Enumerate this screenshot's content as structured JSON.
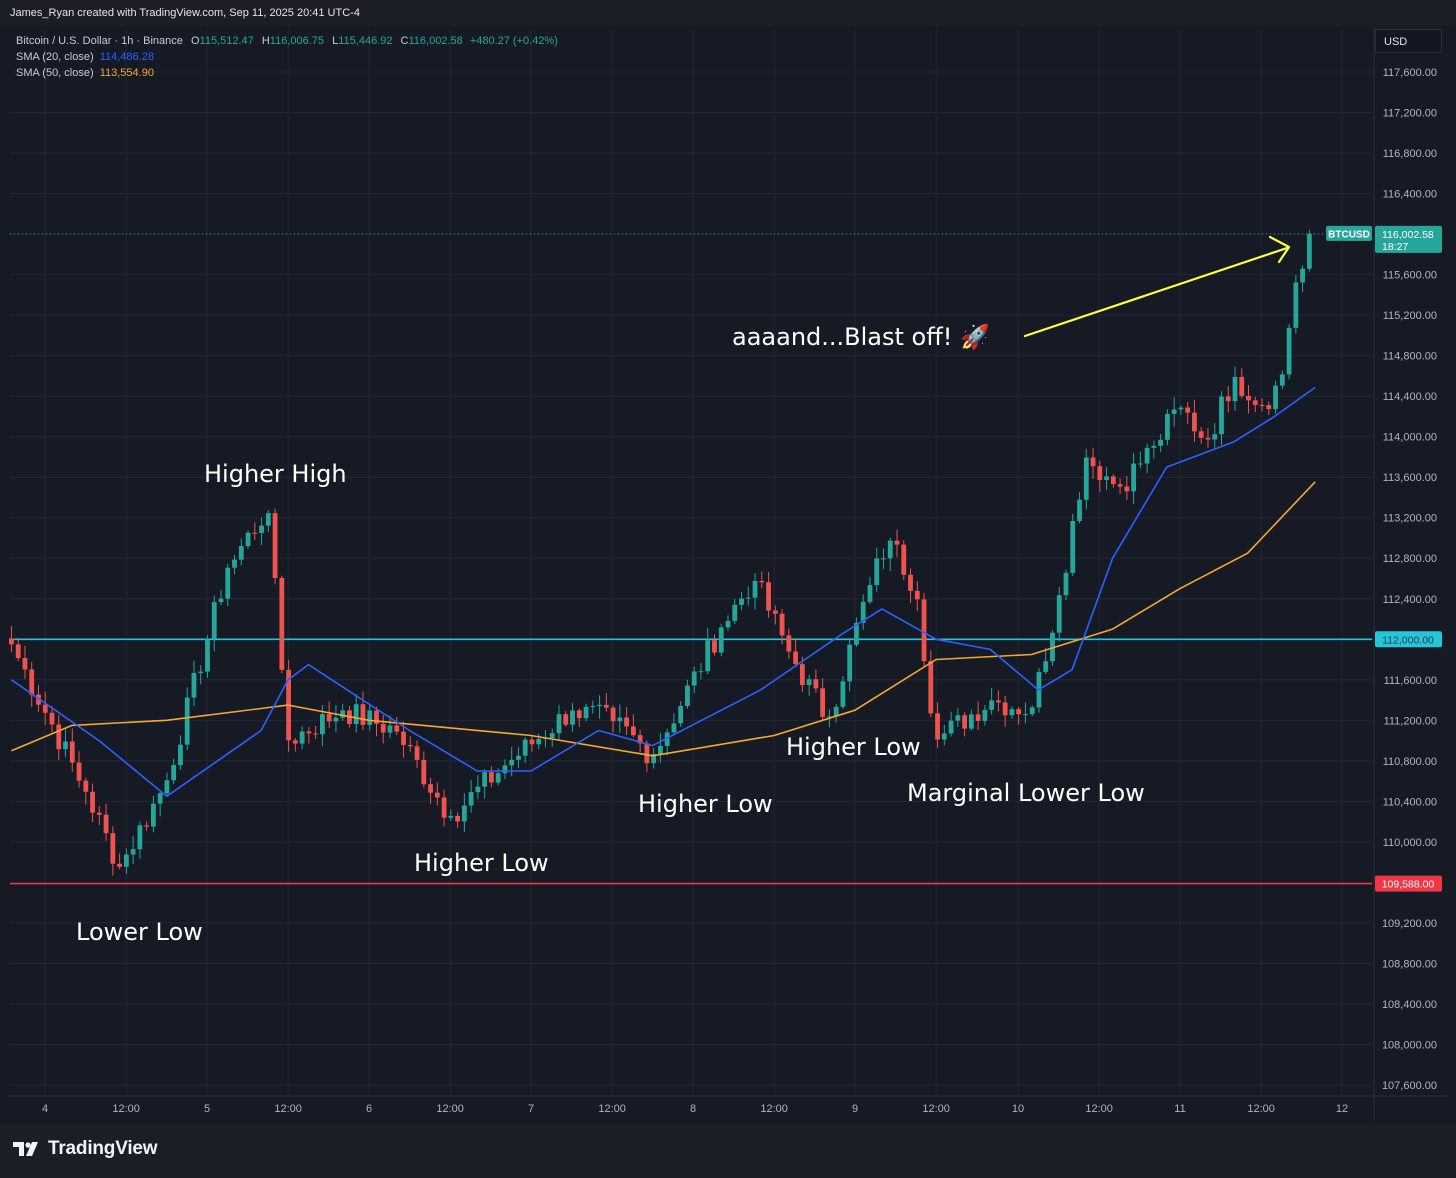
{
  "header": {
    "credit": "James_Ryan created with TradingView.com, Sep 11, 2025 20:41 UTC-4"
  },
  "legend": {
    "symbol": "Bitcoin / U.S. Dollar · 1h · Binance",
    "open_label": "O",
    "open": "115,512.47",
    "high_label": "H",
    "high": "116,006.75",
    "low_label": "L",
    "low": "115,446.92",
    "close_label": "C",
    "close": "116,002.58",
    "change": "+480.27 (+0.42%)",
    "sma20_label": "SMA (20, close)",
    "sma20_value": "114,486.28",
    "sma50_label": "SMA (50, close)",
    "sma50_value": "113,554.90"
  },
  "currency_button": "USD",
  "price_tag": {
    "symbol": "BTCUSD",
    "price": "116,002.58",
    "countdown": "18:27"
  },
  "level_tags": {
    "support_high": "112,000.00",
    "support_low": "109,588.00"
  },
  "annotations": {
    "higher_high": "Higher High",
    "lower_low": "Lower Low",
    "higher_low_1": "Higher Low",
    "higher_low_2": "Higher Low",
    "higher_low_3": "Higher Low",
    "marginal_lower_low": "Marginal Lower Low",
    "blast_off": "aaaand...Blast off! 🚀"
  },
  "brand": {
    "name": "TradingView"
  },
  "colors": {
    "background": "#161a25",
    "grid": "#232734",
    "up": "#26a69a",
    "down": "#ef5350",
    "sma20": "#2962ff",
    "sma50": "#f7a631",
    "level_high": "#26c6da",
    "level_low": "#f23645",
    "arrow": "#ffff3b"
  },
  "chart_data": {
    "type": "candlestick",
    "timeframe": "1h",
    "x_tick_labels": [
      "4",
      "12:00",
      "5",
      "12:00",
      "6",
      "12:00",
      "7",
      "12:00",
      "8",
      "12:00",
      "9",
      "12:00",
      "10",
      "12:00",
      "11",
      "12:00",
      "12"
    ],
    "y_tick_labels": [
      "117,600.00",
      "117,200.00",
      "116,800.00",
      "116,400.00",
      "116,000.00",
      "115,600.00",
      "115,200.00",
      "114,800.00",
      "114,400.00",
      "114,000.00",
      "113,600.00",
      "113,200.00",
      "112,800.00",
      "112,400.00",
      "112,000.00",
      "111,600.00",
      "111,200.00",
      "110,800.00",
      "110,400.00",
      "110,000.00",
      "109,600.00",
      "109,200.00",
      "108,800.00",
      "108,400.00",
      "108,000.00",
      "107,600.00"
    ],
    "y_range": [
      107500,
      118000
    ],
    "horizontal_levels": [
      112000,
      109588
    ],
    "last_price": 116002.58,
    "key_closes": [
      {
        "time": "Sep 3 19:00",
        "close": 111950
      },
      {
        "time": "Sep 4 06:00",
        "close": 110500
      },
      {
        "time": "Sep 4 11:00",
        "close": 109750
      },
      {
        "time": "Sep 4 18:00",
        "close": 110600
      },
      {
        "time": "Sep 5 03:00",
        "close": 112700
      },
      {
        "time": "Sep 5 09:00",
        "close": 113300
      },
      {
        "time": "Sep 5 12:00",
        "close": 111000
      },
      {
        "time": "Sep 5 20:00",
        "close": 111300
      },
      {
        "time": "Sep 6 04:00",
        "close": 111100
      },
      {
        "time": "Sep 6 12:00",
        "close": 110250
      },
      {
        "time": "Sep 6 20:00",
        "close": 110750
      },
      {
        "time": "Sep 7 06:00",
        "close": 111300
      },
      {
        "time": "Sep 7 12:00",
        "close": 111200
      },
      {
        "time": "Sep 7 18:00",
        "close": 110850
      },
      {
        "time": "Sep 8 04:00",
        "close": 112100
      },
      {
        "time": "Sep 8 09:00",
        "close": 112600
      },
      {
        "time": "Sep 8 14:00",
        "close": 111900
      },
      {
        "time": "Sep 8 20:00",
        "close": 111200
      },
      {
        "time": "Sep 9 02:00",
        "close": 112500
      },
      {
        "time": "Sep 9 05:00",
        "close": 113000
      },
      {
        "time": "Sep 9 09:00",
        "close": 112500
      },
      {
        "time": "Sep 9 12:00",
        "close": 111000
      },
      {
        "time": "Sep 9 20:00",
        "close": 111400
      },
      {
        "time": "Sep 10 02:00",
        "close": 111300
      },
      {
        "time": "Sep 10 06:00",
        "close": 112400
      },
      {
        "time": "Sep 10 10:00",
        "close": 113800
      },
      {
        "time": "Sep 10 15:00",
        "close": 113500
      },
      {
        "time": "Sep 10 20:00",
        "close": 113900
      },
      {
        "time": "Sep 11 00:00",
        "close": 114300
      },
      {
        "time": "Sep 11 04:00",
        "close": 113950
      },
      {
        "time": "Sep 11 08:00",
        "close": 114600
      },
      {
        "time": "Sep 11 12:00",
        "close": 114300
      },
      {
        "time": "Sep 11 15:00",
        "close": 114550
      },
      {
        "time": "Sep 11 17:00",
        "close": 115500
      },
      {
        "time": "Sep 11 20:00",
        "close": 116002.58
      }
    ],
    "sma20": [
      {
        "time": "Sep 3 19:00",
        "value": 111600
      },
      {
        "time": "Sep 4 08:00",
        "value": 111000
      },
      {
        "time": "Sep 4 18:00",
        "value": 110450
      },
      {
        "time": "Sep 5 08:00",
        "value": 111100
      },
      {
        "time": "Sep 5 12:00",
        "value": 111600
      },
      {
        "time": "Sep 5 15:00",
        "value": 111750
      },
      {
        "time": "Sep 6 06:00",
        "value": 111100
      },
      {
        "time": "Sep 6 16:00",
        "value": 110700
      },
      {
        "time": "Sep 7 00:00",
        "value": 110700
      },
      {
        "time": "Sep 7 10:00",
        "value": 111100
      },
      {
        "time": "Sep 7 18:00",
        "value": 110950
      },
      {
        "time": "Sep 8 10:00",
        "value": 111500
      },
      {
        "time": "Sep 8 22:00",
        "value": 112050
      },
      {
        "time": "Sep 9 04:00",
        "value": 112300
      },
      {
        "time": "Sep 9 12:00",
        "value": 112000
      },
      {
        "time": "Sep 9 20:00",
        "value": 111900
      },
      {
        "time": "Sep 10 03:00",
        "value": 111500
      },
      {
        "time": "Sep 10 08:00",
        "value": 111700
      },
      {
        "time": "Sep 10 14:00",
        "value": 112800
      },
      {
        "time": "Sep 10 22:00",
        "value": 113700
      },
      {
        "time": "Sep 11 08:00",
        "value": 113950
      },
      {
        "time": "Sep 11 14:00",
        "value": 114200
      },
      {
        "time": "Sep 11 20:00",
        "value": 114486.28
      }
    ],
    "sma50": [
      {
        "time": "Sep 3 19:00",
        "value": 110900
      },
      {
        "time": "Sep 4 04:00",
        "value": 111150
      },
      {
        "time": "Sep 4 18:00",
        "value": 111200
      },
      {
        "time": "Sep 5 12:00",
        "value": 111350
      },
      {
        "time": "Sep 6 00:00",
        "value": 111200
      },
      {
        "time": "Sep 7 00:00",
        "value": 111050
      },
      {
        "time": "Sep 7 18:00",
        "value": 110850
      },
      {
        "time": "Sep 8 12:00",
        "value": 111050
      },
      {
        "time": "Sep 9 00:00",
        "value": 111300
      },
      {
        "time": "Sep 9 12:00",
        "value": 111800
      },
      {
        "time": "Sep 10 02:00",
        "value": 111850
      },
      {
        "time": "Sep 10 14:00",
        "value": 112100
      },
      {
        "time": "Sep 11 00:00",
        "value": 112500
      },
      {
        "time": "Sep 11 10:00",
        "value": 112850
      },
      {
        "time": "Sep 11 20:00",
        "value": 113554.9
      }
    ]
  }
}
